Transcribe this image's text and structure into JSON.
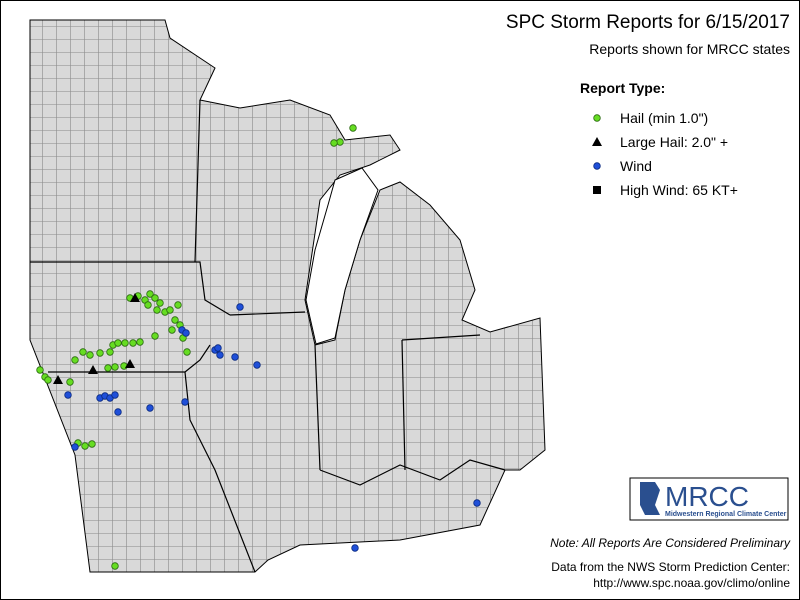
{
  "header": {
    "title": "SPC Storm Reports for 6/15/2017",
    "subtitle": "Reports shown for MRCC states"
  },
  "legend": {
    "title": "Report Type:",
    "items": [
      "Hail (min 1.0\")",
      "Large Hail: 2.0\" +",
      "Wind",
      "High Wind: 65 KT+"
    ]
  },
  "logo": {
    "name": "MRCC",
    "caption": "Midwestern Regional Climate Center"
  },
  "footer": {
    "note": "Note: All Reports Are Considered Preliminary",
    "source": "Data from the NWS Storm Prediction Center:",
    "url": "http://www.spc.noaa.gov/climo/online"
  }
}
